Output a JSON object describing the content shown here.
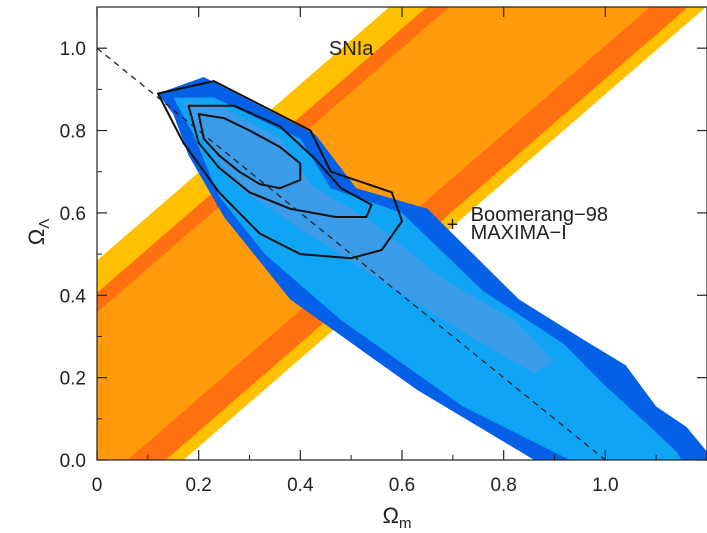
{
  "chart_data": {
    "type": "contour",
    "xlabel": "Ω",
    "xlabel_sub": "m",
    "ylabel": "Ω",
    "ylabel_sub": "Λ",
    "xlim": [
      0.0,
      1.2
    ],
    "ylim": [
      0.0,
      1.1
    ],
    "x_ticks": [
      {
        "value": 0.0,
        "label": "0"
      },
      {
        "value": 0.2,
        "label": "0.2"
      },
      {
        "value": 0.4,
        "label": "0.4"
      },
      {
        "value": 0.6,
        "label": "0.6"
      },
      {
        "value": 0.8,
        "label": "0.8"
      },
      {
        "value": 1.0,
        "label": "1.0"
      }
    ],
    "y_ticks": [
      {
        "value": 0.0,
        "label": "0.0"
      },
      {
        "value": 0.2,
        "label": "0.2"
      },
      {
        "value": 0.4,
        "label": "0.4"
      },
      {
        "value": 0.6,
        "label": "0.6"
      },
      {
        "value": 0.8,
        "label": "0.8"
      },
      {
        "value": 1.0,
        "label": "1.0"
      }
    ],
    "colors": {
      "sn_outer": "#ffc000",
      "sn_middle": "#ff7010",
      "sn_inner": "#ff9a0a",
      "cmb_outer": "#0560e8",
      "cmb_middle": "#10a4f4",
      "cmb_inner": "#3a9be8",
      "flat_line": "#222222",
      "contour_line": "#111111"
    },
    "sn_band": {
      "name": "SNIa",
      "label_position": [
        0.5,
        1.0
      ],
      "slope": 1.07,
      "outer": [
        [
          0.17,
          -0.38
        ],
        [
          0.65,
          1.18
        ]
      ],
      "middle": [
        [
          0.135,
          -0.28
        ],
        [
          0.49,
          0.93
        ]
      ],
      "inner": [
        [
          0.06,
          -0.065
        ],
        [
          0.31,
          0.69
        ]
      ]
    },
    "cmb_regions": {
      "name_line1": "Boomerang−98",
      "name_line2": "MAXIMA−I",
      "label_position": [
        0.735,
        0.58
      ],
      "outer": [
        [
          0.12,
          0.89
        ],
        [
          0.21,
          0.93
        ],
        [
          0.43,
          0.79
        ],
        [
          0.51,
          0.66
        ],
        [
          0.65,
          0.61
        ],
        [
          0.83,
          0.39
        ],
        [
          0.96,
          0.29
        ],
        [
          1.04,
          0.23
        ],
        [
          1.1,
          0.13
        ],
        [
          1.16,
          0.08
        ],
        [
          1.2,
          0.02
        ],
        [
          1.2,
          0.0
        ],
        [
          0.86,
          0.0
        ],
        [
          0.63,
          0.17
        ],
        [
          0.38,
          0.39
        ],
        [
          0.25,
          0.59
        ],
        [
          0.18,
          0.74
        ],
        [
          0.15,
          0.84
        ]
      ],
      "middle": [
        [
          0.15,
          0.88
        ],
        [
          0.23,
          0.88
        ],
        [
          0.4,
          0.78
        ],
        [
          0.46,
          0.66
        ],
        [
          0.6,
          0.6
        ],
        [
          0.76,
          0.41
        ],
        [
          0.92,
          0.28
        ],
        [
          1.0,
          0.18
        ],
        [
          1.08,
          0.09
        ],
        [
          1.14,
          0.02
        ],
        [
          1.15,
          0.0
        ],
        [
          0.93,
          0.0
        ],
        [
          0.72,
          0.13
        ],
        [
          0.48,
          0.34
        ],
        [
          0.33,
          0.5
        ],
        [
          0.24,
          0.64
        ],
        [
          0.19,
          0.79
        ]
      ],
      "inner": [
        [
          0.17,
          0.87
        ],
        [
          0.24,
          0.86
        ],
        [
          0.36,
          0.78
        ],
        [
          0.42,
          0.67
        ],
        [
          0.55,
          0.57
        ],
        [
          0.68,
          0.44
        ],
        [
          0.82,
          0.34
        ],
        [
          0.9,
          0.24
        ],
        [
          0.86,
          0.21
        ],
        [
          0.72,
          0.31
        ],
        [
          0.54,
          0.45
        ],
        [
          0.4,
          0.56
        ],
        [
          0.28,
          0.66
        ],
        [
          0.2,
          0.79
        ]
      ],
      "contour_1": [
        [
          0.2,
          0.84
        ],
        [
          0.25,
          0.83
        ],
        [
          0.3,
          0.8
        ],
        [
          0.36,
          0.76
        ],
        [
          0.4,
          0.72
        ],
        [
          0.4,
          0.68
        ],
        [
          0.36,
          0.66
        ],
        [
          0.32,
          0.67
        ],
        [
          0.28,
          0.7
        ],
        [
          0.24,
          0.74
        ],
        [
          0.21,
          0.78
        ]
      ],
      "contour_2": [
        [
          0.18,
          0.86
        ],
        [
          0.27,
          0.86
        ],
        [
          0.36,
          0.81
        ],
        [
          0.43,
          0.73
        ],
        [
          0.48,
          0.66
        ],
        [
          0.54,
          0.62
        ],
        [
          0.53,
          0.59
        ],
        [
          0.47,
          0.59
        ],
        [
          0.38,
          0.61
        ],
        [
          0.3,
          0.65
        ],
        [
          0.24,
          0.71
        ],
        [
          0.2,
          0.77
        ]
      ],
      "contour_3": [
        [
          0.12,
          0.89
        ],
        [
          0.23,
          0.92
        ],
        [
          0.42,
          0.8
        ],
        [
          0.46,
          0.7
        ],
        [
          0.58,
          0.65
        ],
        [
          0.6,
          0.58
        ],
        [
          0.56,
          0.51
        ],
        [
          0.5,
          0.49
        ],
        [
          0.4,
          0.5
        ],
        [
          0.32,
          0.55
        ],
        [
          0.24,
          0.65
        ],
        [
          0.17,
          0.77
        ]
      ]
    },
    "flat_universe_line": {
      "from": [
        0.0,
        1.0
      ],
      "to": [
        1.0,
        0.0
      ],
      "style": "dashed"
    }
  }
}
